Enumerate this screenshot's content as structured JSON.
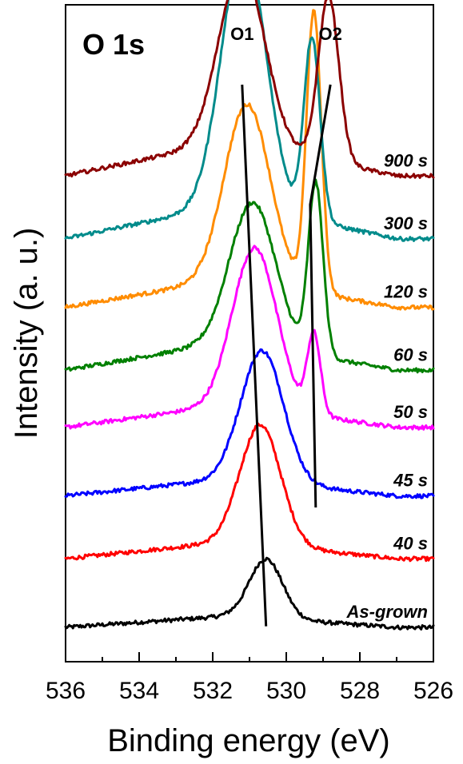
{
  "chart_data": {
    "type": "line",
    "title": "O 1s",
    "xlabel": "Binding energy (eV)",
    "ylabel": "Intensity (a. u.)",
    "xlim": [
      536,
      526
    ],
    "x_reversed": true,
    "x_ticks": [
      "536",
      "534",
      "532",
      "530",
      "528",
      "526"
    ],
    "y_ticks_shown": false,
    "offset_stacked": true,
    "grid": false,
    "peak_labels": [
      {
        "text": "O1",
        "line": [
          [
            531.2,
            5.05
          ],
          [
            530.55,
            0.31
          ]
        ]
      },
      {
        "text": "O2",
        "line": [
          [
            528.8,
            5.05
          ],
          [
            529.35,
            4.0
          ],
          [
            529.2,
            1.35
          ]
        ]
      }
    ],
    "series": [
      {
        "name": "As-grown",
        "color": "#000000",
        "baseline": 0.3,
        "peaks": [
          {
            "center": 530.55,
            "height": 0.52,
            "sigma": 0.45
          }
        ],
        "bg_rise": 0.1
      },
      {
        "name": "40 s",
        "color": "#ff0000",
        "baseline": 0.9,
        "peaks": [
          {
            "center": 530.7,
            "height": 1.05,
            "sigma": 0.55
          }
        ],
        "bg_rise": 0.15
      },
      {
        "name": "45 s",
        "color": "#0000ff",
        "baseline": 1.45,
        "peaks": [
          {
            "center": 530.65,
            "height": 1.15,
            "sigma": 0.58
          }
        ],
        "bg_rise": 0.15
      },
      {
        "name": "50 s",
        "color": "#ff00ff",
        "baseline": 2.05,
        "peaks": [
          {
            "center": 530.85,
            "height": 1.4,
            "sigma": 0.6
          },
          {
            "center": 529.25,
            "height": 0.7,
            "sigma": 0.18
          }
        ],
        "bg_rise": 0.2
      },
      {
        "name": "60 s",
        "color": "#008000",
        "baseline": 2.55,
        "peaks": [
          {
            "center": 530.9,
            "height": 1.25,
            "sigma": 0.62
          },
          {
            "center": 529.2,
            "height": 1.5,
            "sigma": 0.2
          }
        ],
        "bg_rise": 0.25
      },
      {
        "name": "120 s",
        "color": "#ff8c00",
        "baseline": 3.1,
        "peaks": [
          {
            "center": 531.05,
            "height": 1.55,
            "sigma": 0.62
          },
          {
            "center": 529.25,
            "height": 2.45,
            "sigma": 0.2
          }
        ],
        "bg_rise": 0.25
      },
      {
        "name": "300 s",
        "color": "#008b8b",
        "baseline": 3.7,
        "peaks": [
          {
            "center": 531.15,
            "height": 2.3,
            "sigma": 0.6
          },
          {
            "center": 529.3,
            "height": 1.6,
            "sigma": 0.22
          }
        ],
        "bg_rise": 0.3
      },
      {
        "name": "900 s",
        "color": "#8b0000",
        "baseline": 4.25,
        "peaks": [
          {
            "center": 531.2,
            "height": 1.55,
            "sigma": 0.62
          },
          {
            "center": 528.85,
            "height": 1.45,
            "sigma": 0.28
          }
        ],
        "bg_rise": 0.3
      }
    ]
  }
}
